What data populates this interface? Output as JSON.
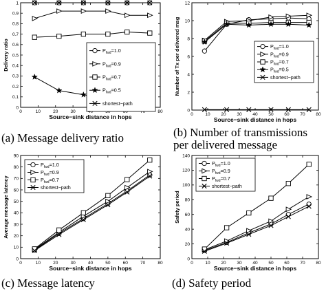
{
  "captions": {
    "a": "(a) Message delivery ratio",
    "b_line1": "(b)  Number  of  transmissions",
    "b_line2": "per delivered message",
    "c": "(c) Message latency",
    "d": "(d) Safety period"
  },
  "legend_entries": [
    {
      "pre": "P",
      "sub": "fwd",
      "post": "=1.0",
      "marker": "circle"
    },
    {
      "pre": "P",
      "sub": "fwd",
      "post": "=0.9",
      "marker": "triangle-right"
    },
    {
      "pre": "P",
      "sub": "fwd",
      "post": "=0.7",
      "marker": "square"
    },
    {
      "pre": "P",
      "sub": "fwd",
      "post": "=0.5",
      "marker": "star"
    },
    {
      "pre": "",
      "sub": "",
      "post": "shortest−path",
      "marker": "x"
    }
  ],
  "chart_data": [
    {
      "id": "a",
      "type": "line",
      "title": "",
      "xlabel": "Source−sink distance in hops",
      "ylabel": "Delivery ratio",
      "xlim": [
        0,
        80
      ],
      "ylim": [
        0,
        1
      ],
      "xticks": [
        0,
        10,
        20,
        30,
        40,
        50,
        60,
        70,
        80
      ],
      "yticks": [
        0,
        0.1,
        0.2,
        0.3,
        0.4,
        0.5,
        0.6,
        0.7,
        0.8,
        0.9,
        1
      ],
      "ytick_labels": [
        "0",
        "0.1",
        "0.2",
        "0.3",
        "0.4",
        "0.5",
        "0.6",
        "0.7",
        "0.8",
        "0.9",
        "1"
      ],
      "grid": false,
      "legend_position": "middle-right",
      "legend_count": 5,
      "series": [
        {
          "name": "P_fwd=1.0",
          "marker": "circle",
          "x": [
            8,
            22,
            36,
            50,
            61,
            74
          ],
          "y": [
            1.0,
            1.0,
            1.0,
            1.0,
            1.0,
            1.0
          ]
        },
        {
          "name": "P_fwd=0.9",
          "marker": "triangle-right",
          "x": [
            8,
            22,
            36,
            50,
            61,
            74
          ],
          "y": [
            0.85,
            0.92,
            0.92,
            0.92,
            0.88,
            0.88
          ]
        },
        {
          "name": "P_fwd=0.7",
          "marker": "square",
          "x": [
            8,
            22,
            36,
            50,
            61,
            74
          ],
          "y": [
            0.67,
            0.68,
            0.7,
            0.7,
            0.72,
            0.71
          ]
        },
        {
          "name": "P_fwd=0.5",
          "marker": "star",
          "x": [
            8,
            22,
            36,
            50,
            61,
            74
          ],
          "y": [
            0.29,
            0.16,
            0.12,
            0.08,
            0.07,
            0.02
          ]
        },
        {
          "name": "shortest−path",
          "marker": "x",
          "x": [
            8,
            22,
            36,
            50,
            61,
            74
          ],
          "y": [
            1.0,
            1.0,
            1.0,
            1.0,
            1.0,
            1.0
          ]
        }
      ]
    },
    {
      "id": "b",
      "type": "line",
      "title": "",
      "xlabel": "Source−sink distance in hops",
      "ylabel": "Number of Tx per delivered msg",
      "xlim": [
        0,
        80
      ],
      "ylim": [
        0,
        12
      ],
      "xticks": [
        0,
        10,
        20,
        30,
        40,
        50,
        60,
        70,
        80
      ],
      "yticks": [
        0,
        2,
        4,
        6,
        8,
        10,
        12
      ],
      "ytick_labels": [
        "0",
        "2",
        "4",
        "6",
        "8",
        "10",
        "12"
      ],
      "grid": false,
      "legend_position": "middle-right",
      "legend_count": 5,
      "series": [
        {
          "name": "P_fwd=1.0",
          "marker": "circle",
          "x": [
            8,
            22,
            36,
            50,
            61,
            74
          ],
          "y": [
            6.6,
            9.6,
            10.1,
            10.2,
            10.3,
            10.2
          ]
        },
        {
          "name": "P_fwd=0.9",
          "marker": "triangle-right",
          "x": [
            8,
            22,
            36,
            50,
            61,
            74
          ],
          "y": [
            7.8,
            9.9,
            10.0,
            10.4,
            10.5,
            10.6
          ]
        },
        {
          "name": "P_fwd=0.7",
          "marker": "square",
          "x": [
            8,
            22,
            36,
            50,
            61,
            74
          ],
          "y": [
            7.7,
            9.7,
            9.7,
            9.8,
            9.8,
            9.8
          ]
        },
        {
          "name": "P_fwd=0.5",
          "marker": "star",
          "x": [
            8,
            22,
            36,
            50,
            61,
            74
          ],
          "y": [
            7.6,
            9.6,
            9.5,
            9.6,
            9.6,
            9.5
          ]
        },
        {
          "name": "shortest−path",
          "marker": "x",
          "x": [
            8,
            22,
            36,
            50,
            61,
            74
          ],
          "y": [
            0.05,
            0.05,
            0.05,
            0.05,
            0.05,
            0.05
          ]
        }
      ]
    },
    {
      "id": "c",
      "type": "line",
      "title": "",
      "xlabel": "Source−sink distance in hops",
      "ylabel": "Average message latency",
      "xlim": [
        0,
        80
      ],
      "ylim": [
        0,
        90
      ],
      "xticks": [
        0,
        10,
        20,
        30,
        40,
        50,
        60,
        70,
        80
      ],
      "yticks": [
        0,
        10,
        20,
        30,
        40,
        50,
        60,
        70,
        80,
        90
      ],
      "ytick_labels": [
        "0",
        "10",
        "20",
        "30",
        "40",
        "50",
        "60",
        "70",
        "80",
        "90"
      ],
      "grid": false,
      "legend_position": "top-left",
      "legend_count": 4,
      "series": [
        {
          "name": "P_fwd=1.0",
          "marker": "circle",
          "x": [
            8,
            22,
            36,
            50,
            61,
            74
          ],
          "y": [
            7.5,
            22,
            35,
            48,
            59,
            73
          ]
        },
        {
          "name": "P_fwd=0.9",
          "marker": "triangle-right",
          "x": [
            8,
            22,
            36,
            50,
            61,
            74
          ],
          "y": [
            8,
            23,
            37,
            50,
            62,
            76
          ]
        },
        {
          "name": "P_fwd=0.7",
          "marker": "square",
          "x": [
            8,
            22,
            36,
            50,
            61,
            74
          ],
          "y": [
            8.5,
            25,
            40,
            55,
            69,
            86
          ]
        },
        {
          "name": "shortest−path",
          "marker": "x",
          "x": [
            8,
            22,
            36,
            50,
            61,
            74
          ],
          "y": [
            7,
            21,
            34,
            47,
            58,
            72
          ]
        }
      ]
    },
    {
      "id": "d",
      "type": "line",
      "title": "",
      "xlabel": "Source−sink distance in hops",
      "ylabel": "Safety period",
      "xlim": [
        0,
        80
      ],
      "ylim": [
        0,
        140
      ],
      "xticks": [
        0,
        10,
        20,
        30,
        40,
        50,
        60,
        70,
        80
      ],
      "yticks": [
        0,
        20,
        40,
        60,
        80,
        100,
        120,
        140
      ],
      "ytick_labels": [
        "0",
        "20",
        "40",
        "60",
        "80",
        "100",
        "120",
        "140"
      ],
      "grid": false,
      "legend_position": "top-left",
      "legend_count": 4,
      "series": [
        {
          "name": "P_fwd=1.0",
          "marker": "circle",
          "x": [
            8,
            22,
            36,
            50,
            61,
            74
          ],
          "y": [
            11,
            22,
            35,
            47,
            60,
            74
          ]
        },
        {
          "name": "P_fwd=0.9",
          "marker": "triangle-right",
          "x": [
            8,
            22,
            36,
            50,
            61,
            74
          ],
          "y": [
            12,
            24,
            38,
            51,
            67,
            84
          ]
        },
        {
          "name": "P_fwd=0.7",
          "marker": "square",
          "x": [
            8,
            22,
            36,
            50,
            61,
            74
          ],
          "y": [
            13,
            42,
            62,
            82,
            102,
            128
          ]
        },
        {
          "name": "shortest−path",
          "marker": "x",
          "x": [
            8,
            22,
            36,
            50,
            61,
            74
          ],
          "y": [
            10,
            21,
            33,
            45,
            57,
            71
          ]
        }
      ]
    }
  ]
}
